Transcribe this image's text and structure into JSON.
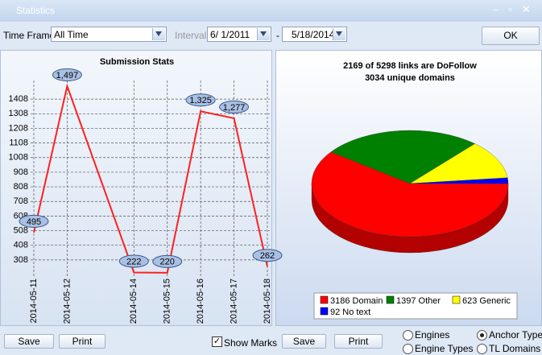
{
  "window": {
    "title": "Statistics"
  },
  "toolbar": {
    "time_frame_label": "Time Frame",
    "time_frame": "All Time",
    "interval_label": "Interval",
    "date_from": "6/ 1/2011",
    "date_separator": "-",
    "date_to": "5/18/2014",
    "ok": "OK"
  },
  "chart_data": [
    {
      "type": "line",
      "title": "Submission Stats",
      "x": [
        "2014-05-11",
        "2014-05-12",
        "2014-05-14",
        "2014-05-15",
        "2014-05-16",
        "2014-05-17",
        "2014-05-18"
      ],
      "values": [
        495,
        1497,
        222,
        220,
        1325,
        1277,
        262
      ],
      "value_labels": [
        "495",
        "1,497",
        "222",
        "220",
        "1,325",
        "1,277",
        "262"
      ],
      "color": "#ff2020",
      "xlim": [
        "2014-05-11",
        "2014-05-18"
      ],
      "ylim": [
        208,
        1508
      ],
      "yticks": [
        308,
        408,
        508,
        608,
        708,
        808,
        908,
        1008,
        1108,
        1208,
        1308,
        1408
      ],
      "grid": true
    },
    {
      "type": "pie",
      "title": "2169 of 5298 links are DoFollow",
      "subtitle": "3034 unique domains",
      "labels": [
        "3186 Domain",
        "1397 Other",
        "623 Generic",
        "92 No text"
      ],
      "values": [
        3186,
        1397,
        623,
        92
      ],
      "colors": [
        "#ff0000",
        "#008000",
        "#ffff00",
        "#0000ff"
      ]
    }
  ],
  "footer": {
    "save_left": "Save",
    "print_left": "Print",
    "show_marks": "Show Marks",
    "show_marks_checked": true,
    "save_right": "Save",
    "print_right": "Print",
    "options": [
      {
        "label": "Engines",
        "selected": false
      },
      {
        "label": "Anchor Type",
        "selected": true
      },
      {
        "label": "Engine Types",
        "selected": false
      },
      {
        "label": "TL Domains",
        "selected": false
      }
    ]
  }
}
